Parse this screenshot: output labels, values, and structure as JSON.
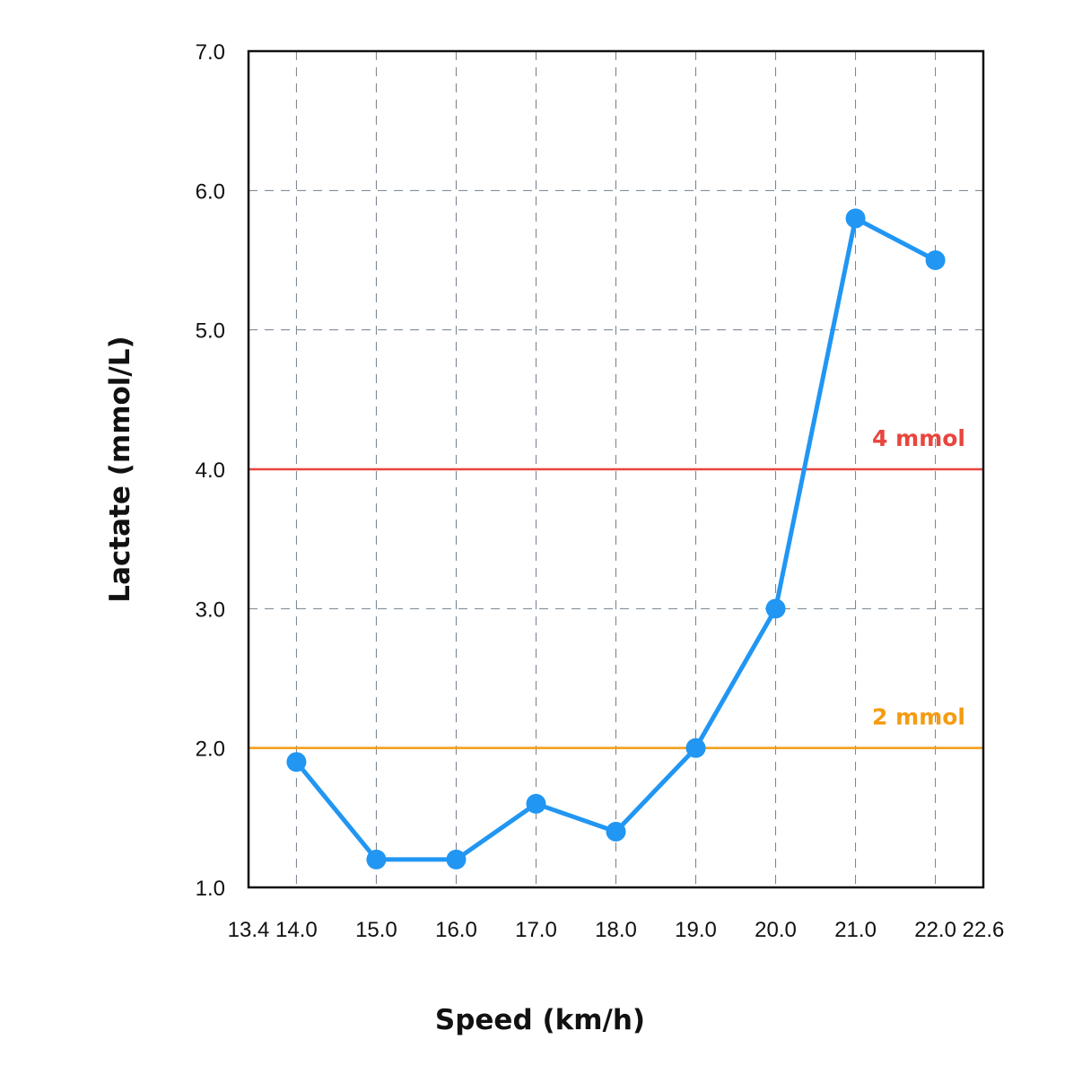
{
  "chart_data": {
    "type": "line",
    "title": "",
    "xlabel": "Speed (km/h)",
    "ylabel": "Lactate (mmol/L)",
    "xlim": [
      13.4,
      22.6
    ],
    "ylim": [
      1.0,
      7.0
    ],
    "x_ticks": [
      "13.4",
      "14.0",
      "15.0",
      "16.0",
      "17.0",
      "18.0",
      "19.0",
      "20.0",
      "21.0",
      "22.0",
      "22.6"
    ],
    "y_ticks": [
      "1.0",
      "2.0",
      "3.0",
      "4.0",
      "5.0",
      "6.0",
      "7.0"
    ],
    "grid": true,
    "series": [
      {
        "x": [
          14.0,
          15.0,
          16.0,
          17.0,
          18.0,
          19.0,
          20.0,
          21.0,
          22.0
        ],
        "values": [
          1.9,
          1.2,
          1.2,
          1.6,
          1.4,
          2.0,
          3.0,
          5.8,
          5.5
        ],
        "color": "#2196f3"
      }
    ],
    "reference_lines": [
      {
        "y": 4.0,
        "label": "4 mmol",
        "color": "#e8453c"
      },
      {
        "y": 2.0,
        "label": "2 mmol",
        "color": "#f39c12"
      }
    ]
  }
}
